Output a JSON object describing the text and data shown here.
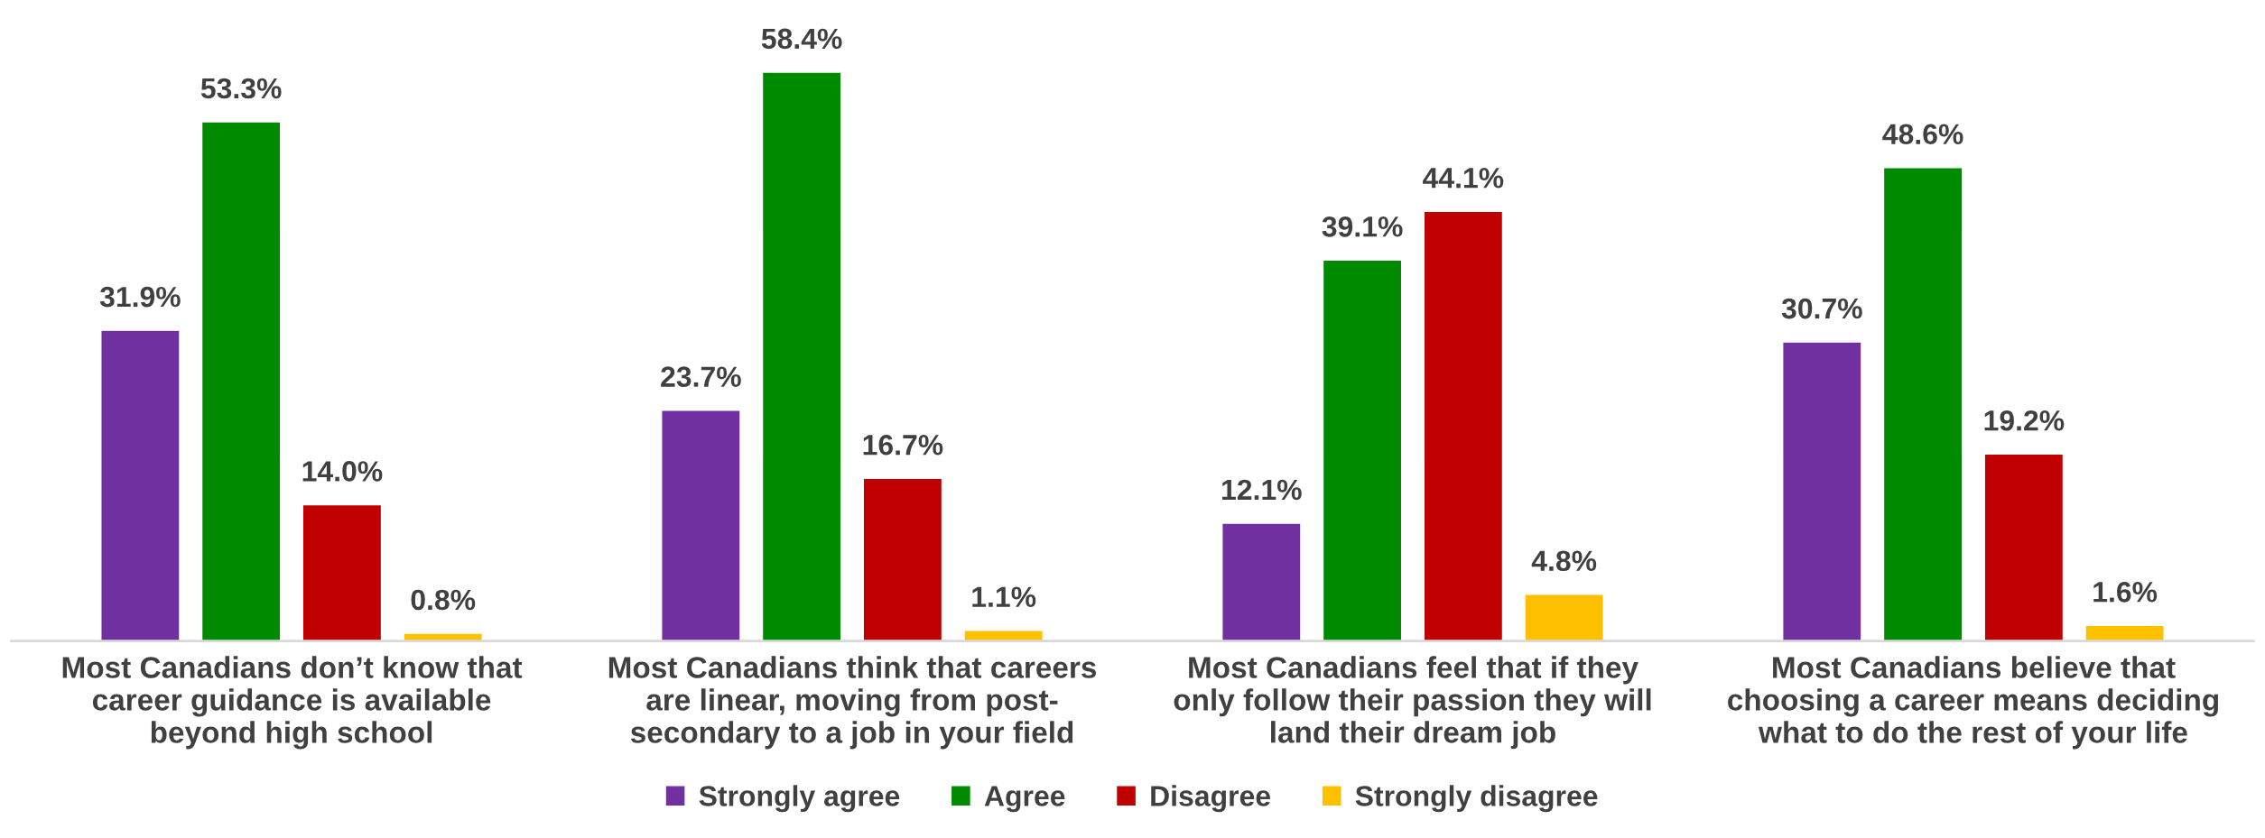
{
  "chart_data": {
    "type": "bar",
    "categories": [
      "Most Canadians don’t know that\ncareer guidance is available\nbeyond high school",
      "Most Canadians think that careers\nare linear, moving from post-\nsecondary to a job in your field",
      "Most Canadians feel that if they\nonly follow their passion they will\nland their dream job",
      "Most Canadians believe that\nchoosing a career means deciding\nwhat to do the rest of your life"
    ],
    "series": [
      {
        "name": "Strongly agree",
        "color": "#7030a0",
        "values": [
          31.9,
          23.7,
          12.1,
          30.7
        ],
        "value_labels": [
          "31.9%",
          "23.7%",
          "12.1%",
          "30.7%"
        ]
      },
      {
        "name": "Agree",
        "color": "#008a00",
        "values": [
          53.3,
          58.4,
          39.1,
          48.6
        ],
        "value_labels": [
          "53.3%",
          "58.4%",
          "39.1%",
          "48.6%"
        ]
      },
      {
        "name": "Disagree",
        "color": "#c00000",
        "values": [
          14.0,
          16.7,
          44.1,
          19.2
        ],
        "value_labels": [
          "14.0%",
          "16.7%",
          "44.1%",
          "19.2%"
        ]
      },
      {
        "name": "Strongly disagree",
        "color": "#ffc000",
        "values": [
          0.8,
          1.1,
          4.8,
          1.6
        ],
        "value_labels": [
          "0.8%",
          "1.1%",
          "4.8%",
          "1.6%"
        ]
      }
    ],
    "tick_labels": "x",
    "grid": false,
    "legend": "bottom"
  }
}
